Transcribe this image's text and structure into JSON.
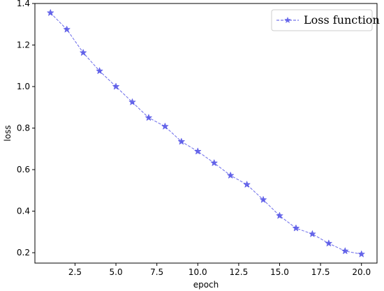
{
  "chart_data": {
    "type": "line",
    "title": "",
    "xlabel": "epoch",
    "ylabel": "loss",
    "xlim": [
      0.05,
      20.95
    ],
    "ylim": [
      0.15,
      1.4
    ],
    "xticks": [
      2.5,
      5.0,
      7.5,
      10.0,
      12.5,
      15.0,
      17.5,
      20.0
    ],
    "xtick_labels": [
      "2.5",
      "5.0",
      "7.5",
      "10.0",
      "12.5",
      "15.0",
      "17.5",
      "20.0"
    ],
    "yticks": [
      0.2,
      0.4,
      0.6,
      0.8,
      1.0,
      1.2,
      1.4
    ],
    "ytick_labels": [
      "0.2",
      "0.4",
      "0.6",
      "0.8",
      "1.0",
      "1.2",
      "1.4"
    ],
    "grid": false,
    "legend": {
      "position": "top-right"
    },
    "series": [
      {
        "name": "Loss function",
        "color": "#5050e6",
        "line_style": "dashed",
        "marker": "star",
        "x": [
          1,
          2,
          3,
          4,
          5,
          6,
          7,
          8,
          9,
          10,
          11,
          12,
          13,
          14,
          15,
          16,
          17,
          18,
          19,
          20
        ],
        "y": [
          1.355,
          1.275,
          1.163,
          1.075,
          1.0,
          0.925,
          0.85,
          0.808,
          0.735,
          0.688,
          0.632,
          0.572,
          0.528,
          0.455,
          0.378,
          0.318,
          0.29,
          0.245,
          0.208,
          0.193
        ]
      }
    ]
  }
}
